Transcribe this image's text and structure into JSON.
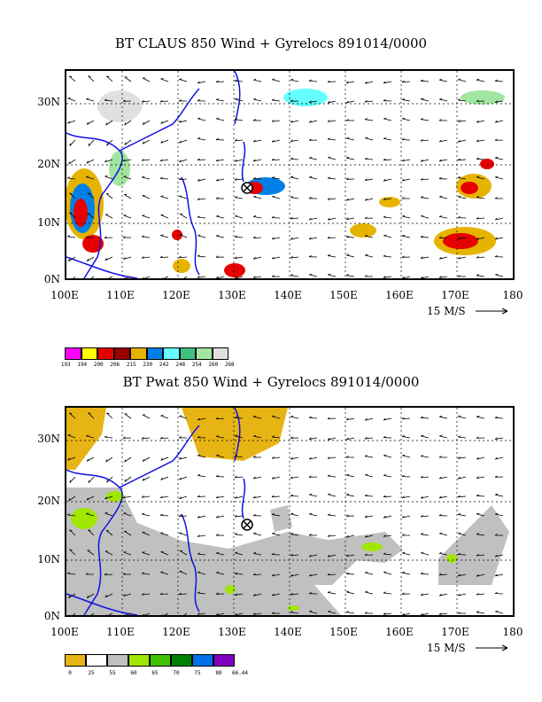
{
  "panel1": {
    "title": "BT CLAUS 850 Wind + Gyrelocs 891014/0000",
    "lat_labels": [
      "30N",
      "20N",
      "10N",
      "0N"
    ],
    "lon_labels": [
      "100E",
      "110E",
      "120E",
      "130E",
      "140E",
      "150E",
      "160E",
      "170E",
      "180"
    ],
    "speed_label": "15 M/S",
    "legend_colors": [
      "#ff00ff",
      "#ffff00",
      "#e60000",
      "#990000",
      "#e6b400",
      "#0080e6",
      "#66ffff",
      "#40c080",
      "#a0e6a0",
      "#e0e0e0"
    ],
    "legend_labels": [
      "193",
      "194",
      "200",
      "206",
      "215",
      "230",
      "242",
      "248",
      "254",
      "260",
      "268"
    ]
  },
  "panel2": {
    "title": "BT Pwat 850 Wind + Gyrelocs 891014/0000",
    "lat_labels": [
      "30N",
      "20N",
      "10N",
      "0N"
    ],
    "lon_labels": [
      "100E",
      "110E",
      "120E",
      "130E",
      "140E",
      "150E",
      "160E",
      "170E",
      "180"
    ],
    "speed_label": "15 M/S",
    "legend_colors": [
      "#e6b414",
      "#ffffff",
      "#c0c0c0",
      "#a0e600",
      "#40c000",
      "#008000",
      "#0070e6",
      "#8000c0"
    ],
    "legend_labels": [
      "0",
      "25",
      "55",
      "60",
      "65",
      "70",
      "75",
      "80",
      "66.44"
    ]
  },
  "colors": {
    "coast": "#1010e6",
    "grid": "#000000"
  }
}
